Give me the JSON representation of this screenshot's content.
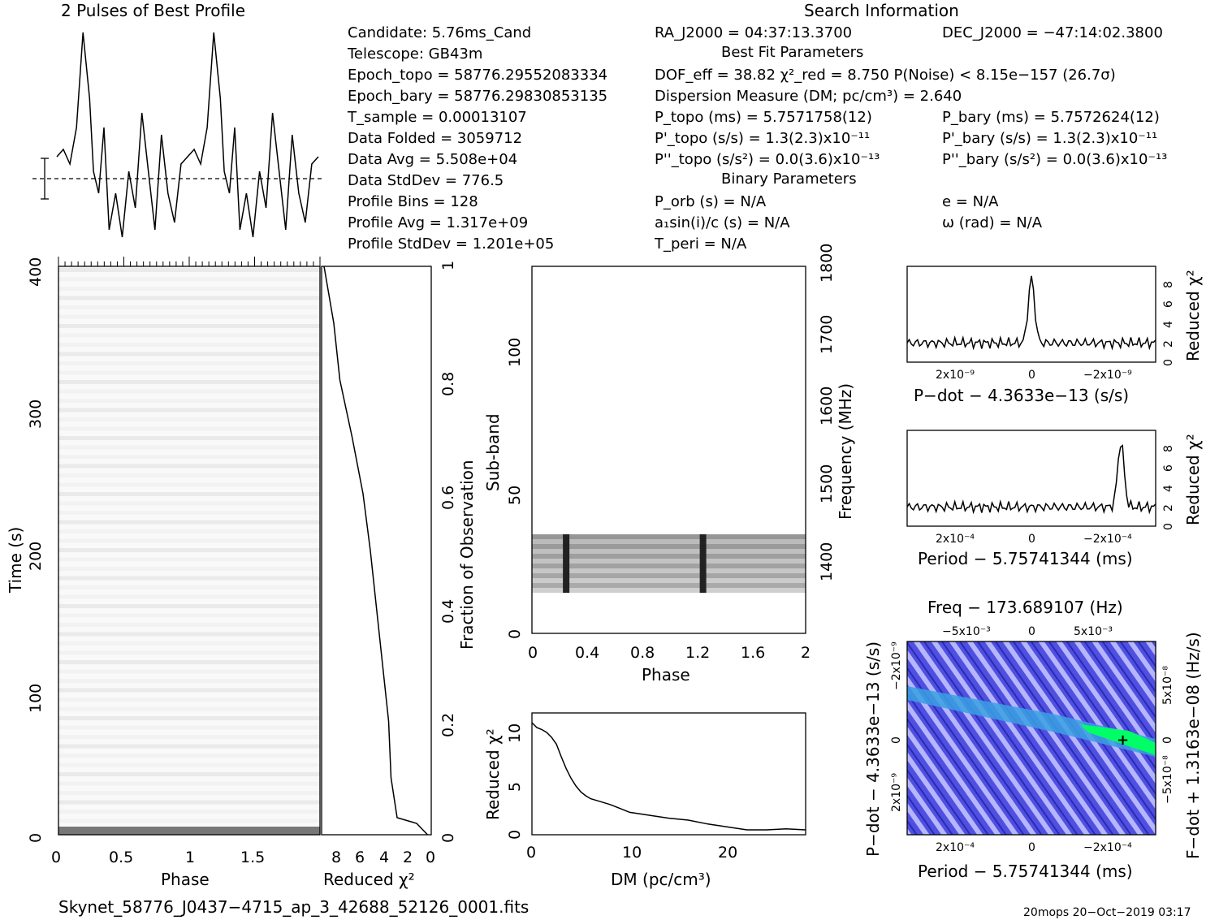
{
  "header": {
    "profile_title": "2 Pulses of Best Profile",
    "search_title": "Search Information",
    "candidate": "Candidate:  5.76ms_Cand",
    "telescope": "Telescope:  GB43m",
    "epoch_topo": "Epoch_topo = 58776.29552083334",
    "epoch_bary": "Epoch_bary = 58776.29830853135",
    "t_sample": "T_sample     =  0.00013107",
    "data_folded": "Data Folded    =  3059712",
    "data_avg": "Data Avg       =  5.508e+04",
    "data_stddev": "Data StdDev    =  776.5",
    "profile_bins": "Profile Bins   =  128",
    "profile_avg": "Profile Avg    =  1.317e+09",
    "profile_stddev": "Profile StdDev =  1.201e+05",
    "ra": "RA_J2000 = 04:37:13.3700",
    "dec": "DEC_J2000 = −47:14:02.3800",
    "best_fit_title": "Best Fit Parameters",
    "dof": "DOF_eff = 38.82  χ²_red = 8.750  P(Noise) < 8.15e−157  (26.7σ)",
    "dm_line": "Dispersion Measure (DM; pc/cm³) = 2.640",
    "p_topo": "P_topo (ms) =  5.7571758(12)",
    "p_bary": "P_bary (ms) =  5.7572624(12)",
    "pd_topo": "P'_topo (s/s) =  1.3(2.3)x10⁻¹¹",
    "pd_bary": "P'_bary (s/s) =  1.3(2.3)x10⁻¹¹",
    "pdd_topo": "P''_topo (s/s²) = 0.0(3.6)x10⁻¹³",
    "pdd_bary": "P''_bary (s/s²) = 0.0(3.6)x10⁻¹³",
    "binary_title": "Binary Parameters",
    "p_orb": "P_orb (s) = N/A",
    "e": "e = N/A",
    "a1sini": "a₁sin(i)/c (s) = N/A",
    "omega": "ω (rad) = N/A",
    "t_peri": "T_peri = N/A"
  },
  "footer": {
    "filename": "Skynet_58776_J0437−4715_ap_3_42688_52126_0001.fits",
    "stamp": "20mops 20−Oct−2019 03:17"
  },
  "colors": {
    "line": "#000000",
    "map_low": "#3a3ad8",
    "map_mid": "#aaaaff",
    "map_peak": "#00ff66"
  },
  "chart_data": [
    {
      "type": "line",
      "title": "2 Pulses of Best Profile",
      "x_phase": [
        0.0,
        0.05,
        0.1,
        0.15,
        0.2,
        0.25,
        0.28,
        0.32,
        0.36,
        0.4,
        0.45,
        0.5,
        0.55,
        0.6,
        0.65,
        0.7,
        0.75,
        0.8,
        0.85,
        0.9,
        0.95,
        1.0,
        1.05,
        1.1,
        1.15,
        1.2,
        1.25,
        1.28,
        1.32,
        1.36,
        1.4,
        1.45,
        1.5,
        1.55,
        1.6,
        1.65,
        1.7,
        1.75,
        1.8,
        1.85,
        1.9,
        1.95,
        2.0
      ],
      "y_rel": [
        0.15,
        0.2,
        0.1,
        0.35,
        1.0,
        0.55,
        0.05,
        -0.1,
        0.35,
        -0.35,
        -0.1,
        -0.4,
        0.05,
        -0.2,
        0.45,
        0.05,
        -0.35,
        0.3,
        -0.1,
        -0.3,
        0.1,
        0.15,
        0.2,
        0.1,
        0.35,
        1.0,
        0.55,
        0.05,
        -0.1,
        0.35,
        -0.35,
        -0.1,
        -0.4,
        0.05,
        -0.2,
        0.45,
        0.05,
        -0.35,
        0.3,
        -0.1,
        -0.3,
        0.1,
        0.15
      ]
    },
    {
      "type": "heatmap",
      "xlabel": "Phase",
      "ylabel": "Time (s)",
      "xlim": [
        0,
        2
      ],
      "ylim": [
        0,
        400
      ],
      "x_ticks": [
        "0",
        "0.5",
        "1",
        "1.5"
      ],
      "y_ticks": [
        "0",
        "100",
        "200",
        "300",
        "400"
      ]
    },
    {
      "type": "line",
      "xlabel": "Reduced χ²",
      "ylabel": "Fraction of Observation",
      "x_ticks": [
        "8",
        "6",
        "4",
        "2",
        "0"
      ],
      "y_ticks": [
        "0",
        "0.2",
        "0.4",
        "0.6",
        "0.8",
        "1"
      ],
      "x": [
        0.3,
        1.2,
        2.8,
        3.3,
        3.5,
        4.0,
        4.5,
        5.0,
        5.6,
        6.5,
        7.5,
        8.0,
        8.8
      ],
      "y": [
        0.0,
        0.02,
        0.03,
        0.1,
        0.2,
        0.3,
        0.4,
        0.5,
        0.6,
        0.7,
        0.8,
        0.9,
        1.0
      ]
    },
    {
      "type": "heatmap",
      "xlabel": "Phase",
      "ylabel": "Sub-band",
      "right_label": "Frequency (MHz)",
      "x_ticks": [
        "0",
        "0.4",
        "0.8",
        "1.2",
        "1.6",
        "2"
      ],
      "y_ticks": [
        "0",
        "50",
        "100"
      ],
      "freq_ticks": [
        "1400",
        "1500",
        "1600",
        "1700",
        "1800"
      ]
    },
    {
      "type": "line",
      "xlabel": "DM (pc/cm³)",
      "ylabel": "Reduced χ²",
      "x_ticks": [
        "0",
        "10",
        "20"
      ],
      "y_ticks": [
        "0",
        "5",
        "10"
      ],
      "x": [
        0,
        0.5,
        1,
        1.5,
        2,
        2.5,
        3,
        3.5,
        4,
        4.5,
        5,
        5.5,
        6,
        7,
        8,
        9,
        10,
        12,
        14,
        16,
        18,
        20,
        22,
        24,
        26,
        28
      ],
      "y": [
        11.5,
        11.0,
        10.8,
        10.5,
        10.0,
        9.3,
        8.0,
        6.8,
        5.8,
        5.0,
        4.4,
        4.0,
        3.7,
        3.4,
        3.1,
        2.7,
        2.3,
        2.0,
        1.7,
        1.5,
        1.1,
        0.8,
        0.5,
        0.5,
        0.6,
        0.5
      ]
    },
    {
      "type": "line",
      "xlabel": "P−dot − 4.3633e−13 (s/s)",
      "ylabel": "Reduced χ²",
      "x_ticks": [
        "2x10⁻⁹",
        "0",
        "−2x10⁻⁹"
      ],
      "y_ticks": [
        "0",
        "2",
        "4",
        "6",
        "8"
      ],
      "peak": 8.8,
      "baseline": 2.0
    },
    {
      "type": "line",
      "xlabel": "Period − 5.75741344 (ms)",
      "ylabel": "Reduced χ²",
      "x_ticks": [
        "2x10⁻⁴",
        "0",
        "−2x10⁻⁴"
      ],
      "y_ticks": [
        "0",
        "2",
        "4",
        "6",
        "8"
      ],
      "peak": 8.8,
      "baseline": 2.0
    },
    {
      "type": "heatmap",
      "title": "Freq − 173.689107 (Hz)",
      "xlabel": "Period − 5.75741344 (ms)",
      "ylabel": "P−dot − 4.3633e−13 (s/s)",
      "right_label": "F−dot + 1.3163e−08 (Hz/s)",
      "top_ticks": [
        "−5x10⁻³",
        "0",
        "5x10⁻³"
      ],
      "bottom_ticks": [
        "2x10⁻⁴",
        "0",
        "−2x10⁻⁴"
      ],
      "left_ticks": [
        "−2x10⁻⁹",
        "0",
        "2x10⁻⁹"
      ],
      "right_ticks": [
        "5x10⁻⁸",
        "0",
        "−5x10⁻⁸"
      ]
    }
  ]
}
